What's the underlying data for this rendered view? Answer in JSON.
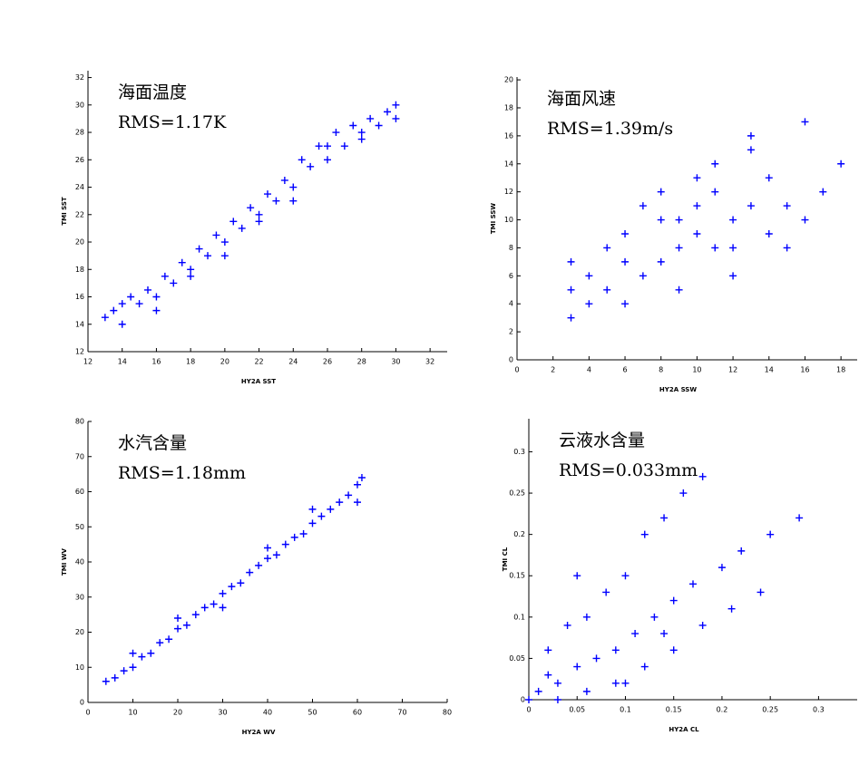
{
  "chart_data": [
    {
      "type": "scatter",
      "title": "海面温度",
      "annotation": "RMS=1.17K",
      "x_label": "HY2A SST",
      "y_label": "TMI SST",
      "color": "#0000ff",
      "xlim": [
        12,
        33
      ],
      "ylim": [
        12,
        32.5
      ],
      "xticks": [
        12,
        14,
        16,
        18,
        20,
        22,
        24,
        26,
        28,
        30,
        32
      ],
      "yticks": [
        12,
        14,
        16,
        18,
        20,
        22,
        24,
        26,
        28,
        30,
        32
      ],
      "x": [
        13,
        13.5,
        14,
        14.5,
        15,
        15.5,
        16,
        16.5,
        17,
        17.5,
        18,
        18.5,
        19,
        19.5,
        20,
        20.5,
        21,
        21.5,
        22,
        22.5,
        23,
        23.5,
        24,
        24.5,
        25,
        25.5,
        26,
        26.5,
        27,
        27.5,
        28,
        28.5,
        29,
        29.5,
        30,
        30,
        14,
        16,
        18,
        20,
        22,
        24,
        26,
        28
      ],
      "values": [
        14.5,
        15,
        14,
        16,
        15.5,
        16.5,
        16,
        17.5,
        17,
        18.5,
        18,
        19.5,
        19,
        20.5,
        20,
        21.5,
        21,
        22.5,
        22,
        23.5,
        23,
        24.5,
        24,
        26,
        25.5,
        27,
        26,
        28,
        27,
        28.5,
        28,
        29,
        28.5,
        29.5,
        29,
        30,
        15.5,
        15,
        17.5,
        19,
        21.5,
        23,
        27,
        27.5
      ]
    },
    {
      "type": "scatter",
      "title": "海面风速",
      "annotation": "RMS=1.39m/s",
      "x_label": "HY2A SSW",
      "y_label": "TMI SSW",
      "color": "#0000ff",
      "xlim": [
        0,
        18.9
      ],
      "ylim": [
        0,
        20.2
      ],
      "xticks": [
        0,
        2,
        4,
        6,
        8,
        10,
        12,
        14,
        16,
        18
      ],
      "yticks": [
        0,
        2,
        4,
        6,
        8,
        10,
        12,
        14,
        16,
        18,
        20
      ],
      "x": [
        3,
        3,
        3,
        4,
        4,
        5,
        5,
        6,
        6,
        7,
        7,
        8,
        8,
        9,
        9,
        10,
        10,
        11,
        11,
        12,
        12,
        13,
        13,
        14,
        14,
        15,
        16,
        17,
        18,
        6,
        8,
        10,
        12,
        9,
        11,
        15,
        16,
        13
      ],
      "values": [
        3,
        5,
        7,
        4,
        6,
        5,
        8,
        4,
        9,
        6,
        11,
        7,
        12,
        5,
        10,
        9,
        13,
        8,
        14,
        10,
        6,
        11,
        15,
        9,
        13,
        11,
        17,
        12,
        14,
        7,
        10,
        11,
        8,
        8,
        12,
        8,
        10,
        16
      ]
    },
    {
      "type": "scatter",
      "title": "水汽含量",
      "annotation": "RMS=1.18mm",
      "x_label": "HY2A WV",
      "y_label": "TMI WV",
      "color": "#0000ff",
      "xlim": [
        0,
        80
      ],
      "ylim": [
        0,
        80
      ],
      "xticks": [
        0,
        10,
        20,
        30,
        40,
        50,
        60,
        70,
        80
      ],
      "yticks": [
        0,
        10,
        20,
        30,
        40,
        50,
        60,
        70,
        80
      ],
      "x": [
        4,
        6,
        8,
        10,
        12,
        14,
        16,
        18,
        20,
        22,
        24,
        26,
        28,
        30,
        32,
        34,
        36,
        38,
        40,
        42,
        44,
        46,
        48,
        50,
        52,
        54,
        56,
        58,
        60,
        61,
        10,
        20,
        30,
        40,
        50,
        60
      ],
      "values": [
        6,
        7,
        9,
        10,
        13,
        14,
        17,
        18,
        21,
        22,
        25,
        27,
        28,
        31,
        33,
        34,
        37,
        39,
        41,
        42,
        45,
        47,
        48,
        51,
        53,
        55,
        57,
        59,
        62,
        64,
        14,
        24,
        27,
        44,
        55,
        57
      ]
    },
    {
      "type": "scatter",
      "title": "云液水含量",
      "annotation": "RMS=0.033mm",
      "x_label": "HY2A CL",
      "y_label": "TMI CL",
      "color": "#0000ff",
      "xlim": [
        0,
        0.34
      ],
      "ylim": [
        0,
        0.34
      ],
      "xticks": [
        0,
        0.05,
        0.1,
        0.15,
        0.2,
        0.25,
        0.3
      ],
      "yticks": [
        0,
        0.05,
        0.1,
        0.15,
        0.2,
        0.25,
        0.3
      ],
      "x": [
        0,
        0.01,
        0.02,
        0.03,
        0.05,
        0.07,
        0.09,
        0.11,
        0.13,
        0.15,
        0.17,
        0.2,
        0.22,
        0.25,
        0.28,
        0.02,
        0.04,
        0.06,
        0.08,
        0.1,
        0.12,
        0.14,
        0.16,
        0.18,
        0.03,
        0.06,
        0.09,
        0.12,
        0.15,
        0.18,
        0.21,
        0.24,
        0.05,
        0.1,
        0.14
      ],
      "values": [
        0,
        0.01,
        0.03,
        0.02,
        0.04,
        0.05,
        0.06,
        0.08,
        0.1,
        0.12,
        0.14,
        0.16,
        0.18,
        0.2,
        0.22,
        0.06,
        0.09,
        0.1,
        0.13,
        0.15,
        0.2,
        0.22,
        0.25,
        0.27,
        0,
        0.01,
        0.02,
        0.04,
        0.06,
        0.09,
        0.11,
        0.13,
        0.15,
        0.02,
        0.08
      ]
    }
  ]
}
